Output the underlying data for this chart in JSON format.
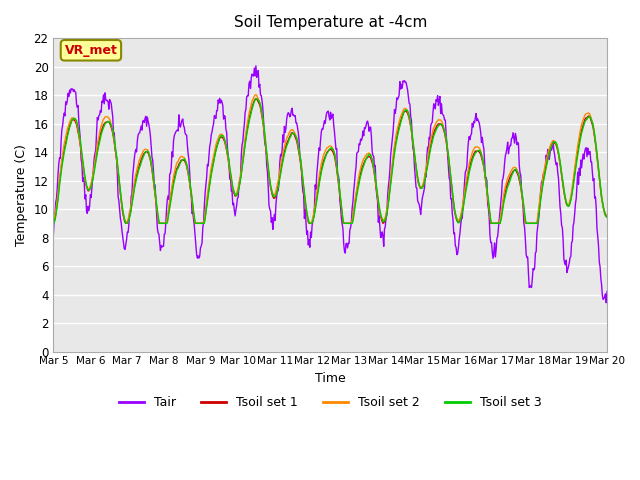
{
  "title": "Soil Temperature at -4cm",
  "xlabel": "Time",
  "ylabel": "Temperature (C)",
  "ylim": [
    0,
    22
  ],
  "yticks": [
    0,
    2,
    4,
    6,
    8,
    10,
    12,
    14,
    16,
    18,
    20,
    22
  ],
  "x_labels": [
    "Mar 5",
    "Mar 6",
    "Mar 7",
    "Mar 8",
    "Mar 9",
    "Mar 10",
    "Mar 11",
    "Mar 12",
    "Mar 13",
    "Mar 14",
    "Mar 15",
    "Mar 16",
    "Mar 17",
    "Mar 18",
    "Mar 19",
    "Mar 20"
  ],
  "colors": {
    "Tair": "#9900ff",
    "Tsoil1": "#cc0000",
    "Tsoil2": "#ff8800",
    "Tsoil3": "#00cc00"
  },
  "legend_labels": [
    "Tair",
    "Tsoil set 1",
    "Tsoil set 2",
    "Tsoil set 3"
  ],
  "annotation_text": "VR_met",
  "bg_color": "#e8e8e8",
  "line_width": 1.0,
  "n_points": 720
}
